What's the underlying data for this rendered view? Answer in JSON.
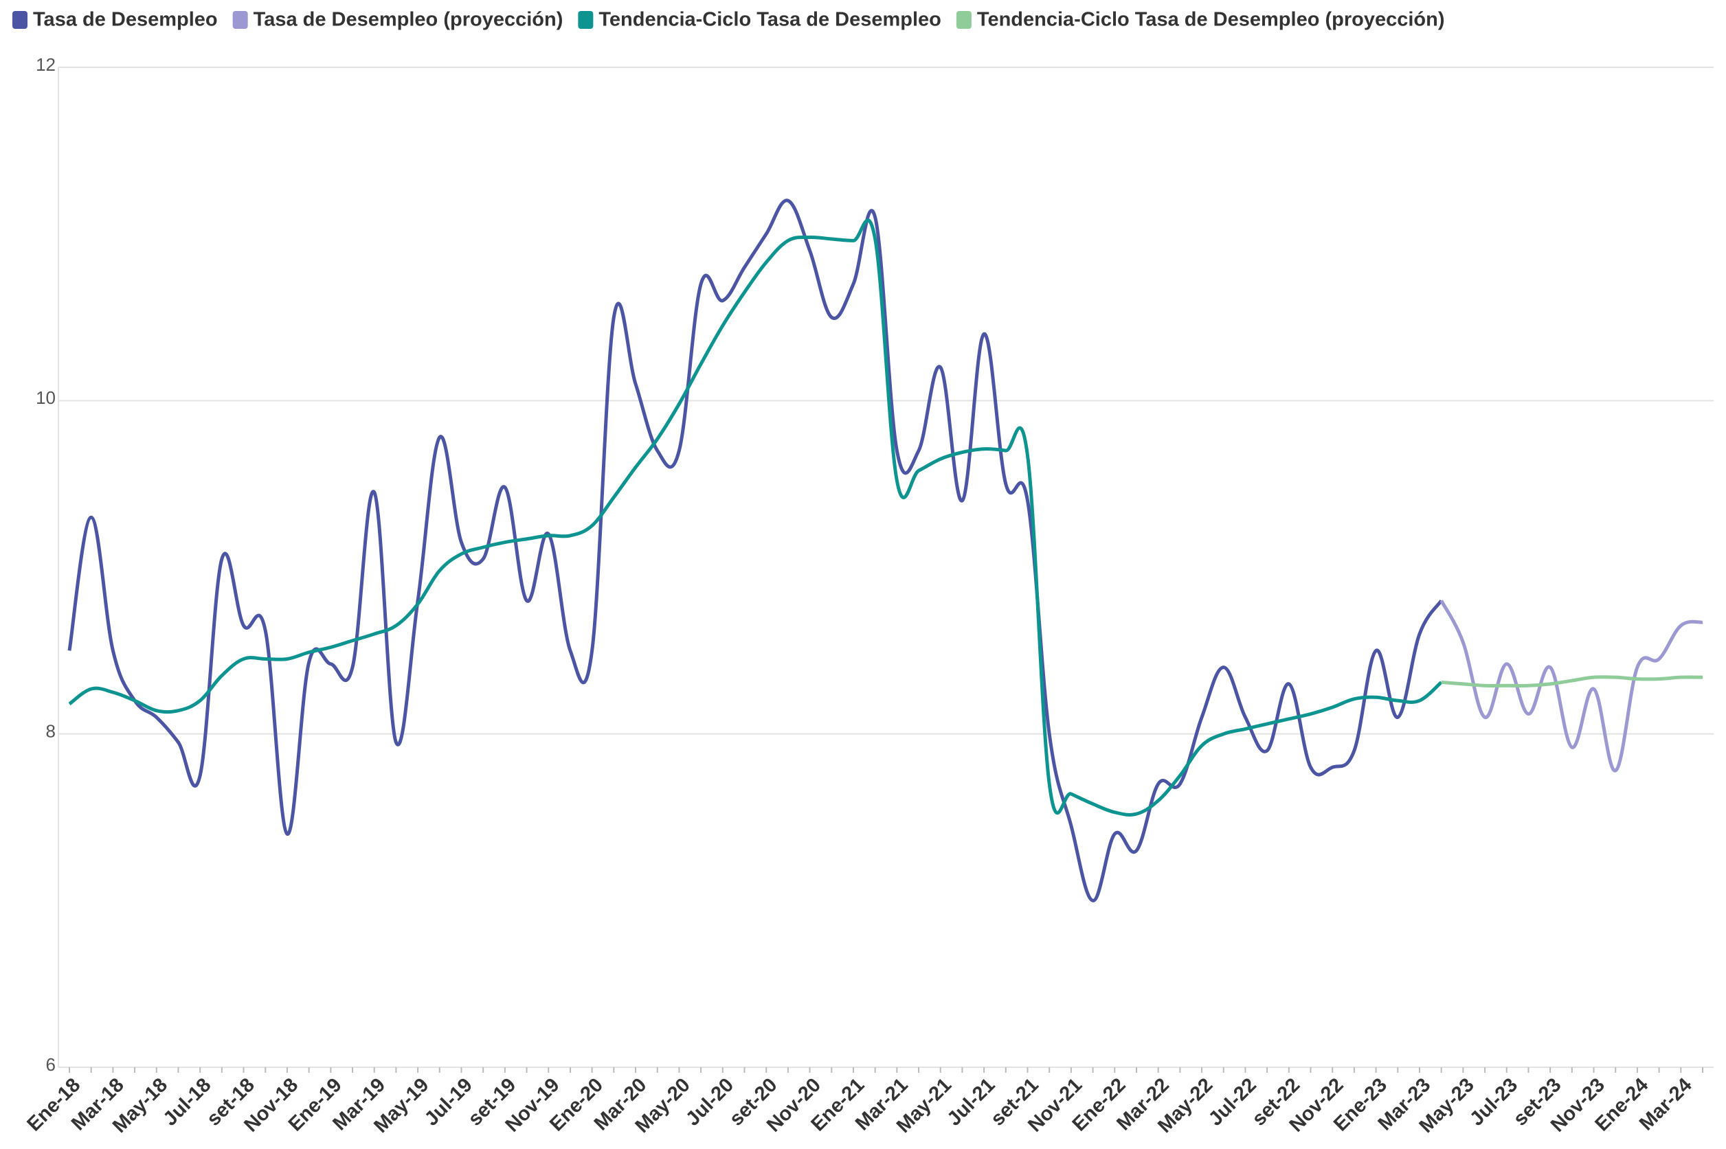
{
  "chart_data": {
    "type": "line",
    "categories": [
      "Ene-18",
      null,
      "Mar-18",
      null,
      "May-18",
      null,
      "Jul-18",
      null,
      "set-18",
      null,
      "Nov-18",
      null,
      "Ene-19",
      null,
      "Mar-19",
      null,
      "May-19",
      null,
      "Jul-19",
      null,
      "set-19",
      null,
      "Nov-19",
      null,
      "Ene-20",
      null,
      "Mar-20",
      null,
      "May-20",
      null,
      "Jul-20",
      null,
      "set-20",
      null,
      "Nov-20",
      null,
      "Ene-21",
      null,
      "Mar-21",
      null,
      "May-21",
      null,
      "Jul-21",
      null,
      "set-21",
      null,
      "Nov-21",
      null,
      "Ene-22",
      null,
      "Mar-22",
      null,
      "May-22",
      null,
      "Jul-22",
      null,
      "set-22",
      null,
      "Nov-22",
      null,
      "Ene-23",
      null,
      "Mar-23",
      null,
      "May-23",
      null,
      "Jul-23",
      null,
      "set-23",
      null,
      "Nov-23",
      null,
      "Ene-24",
      null,
      "Mar-24",
      null
    ],
    "series": [
      {
        "name": "Tasa de Desempleo",
        "color": "#4c55a4",
        "values": [
          8.5,
          9.3,
          8.5,
          8.2,
          8.1,
          7.95,
          7.75,
          9.05,
          8.65,
          8.62,
          7.4,
          8.43,
          8.42,
          8.4,
          9.45,
          7.95,
          8.8,
          9.78,
          9.15,
          9.05,
          9.48,
          8.8,
          9.2,
          8.5,
          8.5,
          10.5,
          10.1,
          9.7,
          9.7,
          10.7,
          10.6,
          10.8,
          11.0,
          11.2,
          10.9,
          10.5,
          10.7,
          11.1,
          9.7,
          9.7,
          10.2,
          9.4,
          10.4,
          9.5,
          9.4,
          8.0,
          7.45,
          7.0,
          7.4,
          7.3,
          7.7,
          7.7,
          8.1,
          8.4,
          8.1,
          7.9,
          8.3,
          7.8,
          7.8,
          7.9,
          8.5,
          8.1,
          8.6,
          8.8,
          null,
          null,
          null,
          null,
          null,
          null,
          null,
          null,
          null,
          null,
          null,
          null
        ]
      },
      {
        "name": "Tasa de Desempleo (proyección)",
        "color": "#9b98d2",
        "values": [
          null,
          null,
          null,
          null,
          null,
          null,
          null,
          null,
          null,
          null,
          null,
          null,
          null,
          null,
          null,
          null,
          null,
          null,
          null,
          null,
          null,
          null,
          null,
          null,
          null,
          null,
          null,
          null,
          null,
          null,
          null,
          null,
          null,
          null,
          null,
          null,
          null,
          null,
          null,
          null,
          null,
          null,
          null,
          null,
          null,
          null,
          null,
          null,
          null,
          null,
          null,
          null,
          null,
          null,
          null,
          null,
          null,
          null,
          null,
          null,
          null,
          null,
          null,
          8.8,
          8.55,
          8.1,
          8.42,
          8.12,
          8.4,
          7.92,
          8.27,
          7.78,
          8.4,
          8.45,
          8.65,
          8.67
        ]
      },
      {
        "name": "Tendencia-Ciclo Tasa de Desempleo",
        "color": "#0d9490",
        "values": [
          8.18,
          8.27,
          8.25,
          8.2,
          8.14,
          8.14,
          8.2,
          8.35,
          8.45,
          8.45,
          8.45,
          8.49,
          8.52,
          8.56,
          8.6,
          8.65,
          8.78,
          8.98,
          9.08,
          9.12,
          9.15,
          9.17,
          9.19,
          9.19,
          9.25,
          9.42,
          9.6,
          9.77,
          9.98,
          10.22,
          10.45,
          10.65,
          10.83,
          10.96,
          10.98,
          10.97,
          10.96,
          10.97,
          9.52,
          9.58,
          9.65,
          9.69,
          9.71,
          9.7,
          9.67,
          7.7,
          7.64,
          7.58,
          7.53,
          7.52,
          7.6,
          7.75,
          7.93,
          8.0,
          8.03,
          8.06,
          8.09,
          8.12,
          8.16,
          8.21,
          8.22,
          8.2,
          8.2,
          8.31,
          null,
          null,
          null,
          null,
          null,
          null,
          null,
          null,
          null,
          null,
          null,
          null
        ]
      },
      {
        "name": "Tendencia-Ciclo Tasa de Desempleo (proyección)",
        "color": "#8fcc9a",
        "values": [
          null,
          null,
          null,
          null,
          null,
          null,
          null,
          null,
          null,
          null,
          null,
          null,
          null,
          null,
          null,
          null,
          null,
          null,
          null,
          null,
          null,
          null,
          null,
          null,
          null,
          null,
          null,
          null,
          null,
          null,
          null,
          null,
          null,
          null,
          null,
          null,
          null,
          null,
          null,
          null,
          null,
          null,
          null,
          null,
          null,
          null,
          null,
          null,
          null,
          null,
          null,
          null,
          null,
          null,
          null,
          null,
          null,
          null,
          null,
          null,
          null,
          null,
          null,
          8.31,
          8.3,
          8.29,
          8.29,
          8.29,
          8.3,
          8.32,
          8.34,
          8.34,
          8.33,
          8.33,
          8.34,
          8.34
        ]
      }
    ],
    "ylim": [
      6,
      12
    ],
    "yticks": [
      6,
      8,
      10,
      12
    ],
    "grid": true,
    "legend": "top-left"
  }
}
